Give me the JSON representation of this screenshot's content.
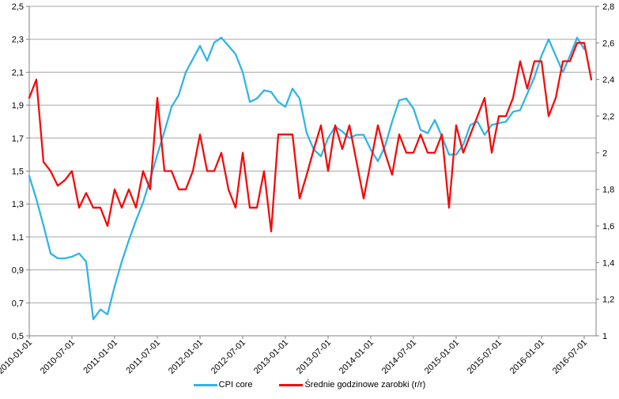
{
  "chart_data": {
    "type": "line",
    "title": "",
    "xlabel": "",
    "ylabel": "",
    "grid": "horizontal",
    "legend_position": "bottom-center",
    "x_start_month": "2010-01",
    "x_frequency": "monthly",
    "x_tick_labels": [
      "2010-01-01",
      "2010-07-01",
      "2011-01-01",
      "2011-07-01",
      "2012-01-01",
      "2012-07-01",
      "2013-01-01",
      "2013-07-01",
      "2014-01-01",
      "2014-07-01",
      "2015-01-01",
      "2015-07-01",
      "2016-01-01",
      "2016-07-01"
    ],
    "left_axis": {
      "min": 0.5,
      "max": 2.5,
      "step": 0.2,
      "labels": [
        "2,5",
        "2,3",
        "2,1",
        "1,9",
        "1,7",
        "1,5",
        "1,3",
        "1,1",
        "0,9",
        "0,7",
        "0,5"
      ]
    },
    "right_axis": {
      "min": 1.0,
      "max": 2.8,
      "step": 0.2,
      "labels": [
        "2,8",
        "2,6",
        "2,4",
        "2,2",
        "2",
        "1,8",
        "1,6",
        "1,4",
        "1,2",
        "1"
      ]
    },
    "axis_color": "#808080",
    "grid_color": "#a6a6a6",
    "series": [
      {
        "id": "cpi-core",
        "name": "CPI core",
        "color": "#31b4e9",
        "axis": "left",
        "start_month": "2010-01",
        "values": [
          1.47,
          1.33,
          1.17,
          1.0,
          0.97,
          0.97,
          0.98,
          1.0,
          0.95,
          0.6,
          0.66,
          0.63,
          0.8,
          0.95,
          1.08,
          1.2,
          1.31,
          1.45,
          1.6,
          1.74,
          1.89,
          1.96,
          2.1,
          2.18,
          2.26,
          2.17,
          2.28,
          2.31,
          2.26,
          2.21,
          2.1,
          1.92,
          1.94,
          1.99,
          1.98,
          1.92,
          1.89,
          2.0,
          1.94,
          1.73,
          1.63,
          1.59,
          1.7,
          1.77,
          1.74,
          1.7,
          1.72,
          1.72,
          1.63,
          1.56,
          1.65,
          1.8,
          1.93,
          1.94,
          1.88,
          1.75,
          1.73,
          1.81,
          1.71,
          1.6,
          1.6,
          1.66,
          1.78,
          1.8,
          1.72,
          1.78,
          1.79,
          1.8,
          1.86,
          1.87,
          1.97,
          2.07,
          2.2,
          2.3,
          2.2,
          2.1,
          2.2,
          2.31,
          2.24
        ]
      },
      {
        "id": "earnings",
        "name": "Średnie godzinowe zarobki (r/r)",
        "color": "#f40b0b",
        "axis": "right",
        "start_month": "2010-01",
        "values": [
          2.3,
          2.4,
          1.95,
          1.9,
          1.82,
          1.85,
          1.9,
          1.7,
          1.78,
          1.7,
          1.7,
          1.6,
          1.8,
          1.7,
          1.8,
          1.7,
          1.9,
          1.8,
          2.3,
          1.9,
          1.9,
          1.8,
          1.8,
          1.9,
          2.1,
          1.9,
          1.9,
          2.0,
          1.8,
          1.7,
          2.0,
          1.7,
          1.7,
          1.9,
          1.57,
          2.1,
          2.1,
          2.1,
          1.75,
          1.88,
          2.02,
          2.15,
          1.9,
          2.15,
          2.02,
          2.15,
          1.95,
          1.75,
          1.95,
          2.15,
          2.0,
          1.88,
          2.1,
          2.0,
          2.0,
          2.1,
          2.0,
          2.0,
          2.1,
          1.7,
          2.15,
          2.0,
          2.1,
          2.2,
          2.3,
          2.0,
          2.2,
          2.2,
          2.3,
          2.5,
          2.35,
          2.5,
          2.5,
          2.2,
          2.3,
          2.5,
          2.5,
          2.6,
          2.6,
          2.4
        ]
      }
    ]
  },
  "legend": {
    "items": [
      {
        "label": "CPI core"
      },
      {
        "label": "Średnie godzinowe zarobki (r/r)"
      }
    ]
  }
}
